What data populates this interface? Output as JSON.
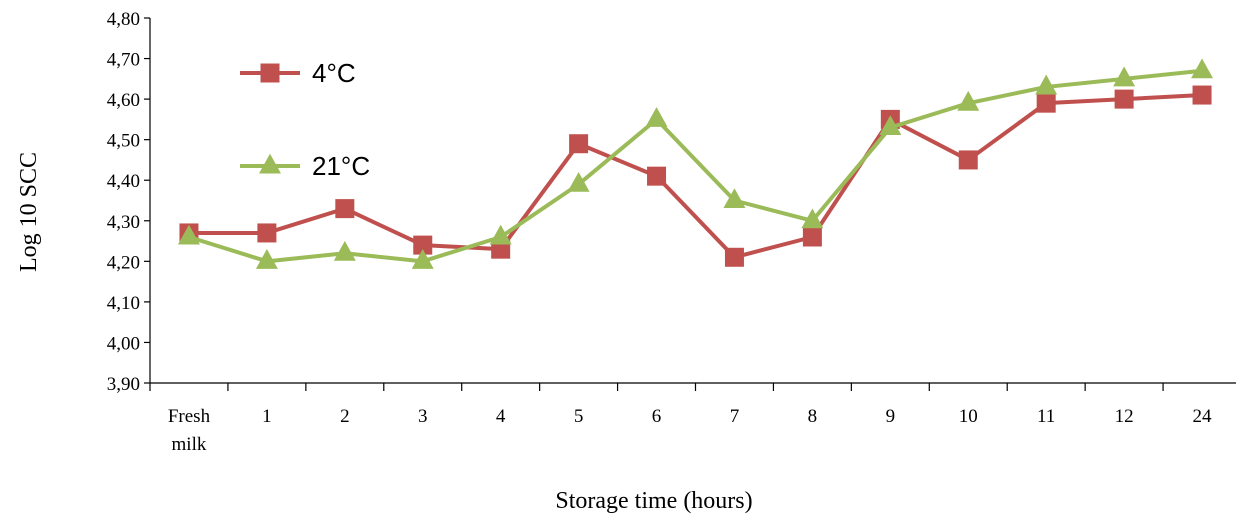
{
  "chart_data": {
    "type": "line",
    "categories": [
      "Fresh milk",
      "1",
      "2",
      "3",
      "4",
      "5",
      "6",
      "7",
      "8",
      "9",
      "10",
      "11",
      "12",
      "24"
    ],
    "series": [
      {
        "name": "4°C",
        "color": "#C0504D",
        "marker": "square",
        "values": [
          4.27,
          4.27,
          4.33,
          4.24,
          4.23,
          4.49,
          4.41,
          4.21,
          4.26,
          4.55,
          4.45,
          4.59,
          4.6,
          4.61
        ]
      },
      {
        "name": "21°C",
        "color": "#9BBB59",
        "marker": "triangle",
        "values": [
          4.26,
          4.2,
          4.22,
          4.2,
          4.26,
          4.39,
          4.55,
          4.35,
          4.3,
          4.53,
          4.59,
          4.63,
          4.65,
          4.67
        ]
      }
    ],
    "y_ticks": [
      "3,90",
      "4,00",
      "4,10",
      "4,20",
      "4,30",
      "4,40",
      "4,50",
      "4,60",
      "4,70",
      "4,80"
    ],
    "ylim": [
      3.9,
      4.8
    ],
    "xlabel": "Storage time (hours)",
    "ylabel": "Log 10 SCC",
    "grid": false,
    "legend_position": "top-left"
  }
}
